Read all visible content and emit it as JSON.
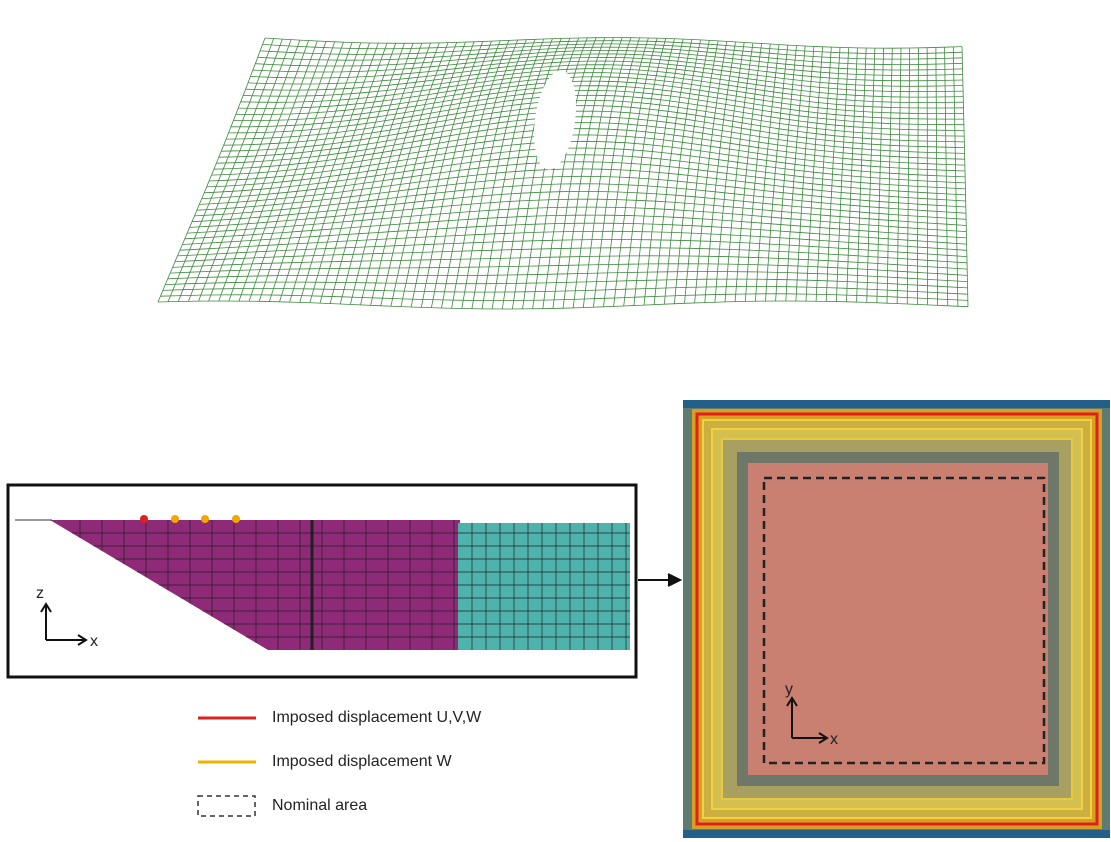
{
  "cross_section": {
    "axes": {
      "vertical": "z",
      "horizontal": "x"
    }
  },
  "plan_view": {
    "axes": {
      "vertical": "y",
      "horizontal": "x"
    }
  },
  "legend": {
    "items": [
      {
        "label": "Imposed displacement U,V,W"
      },
      {
        "label": "Imposed displacement W"
      },
      {
        "label": "Nominal area"
      }
    ]
  }
}
